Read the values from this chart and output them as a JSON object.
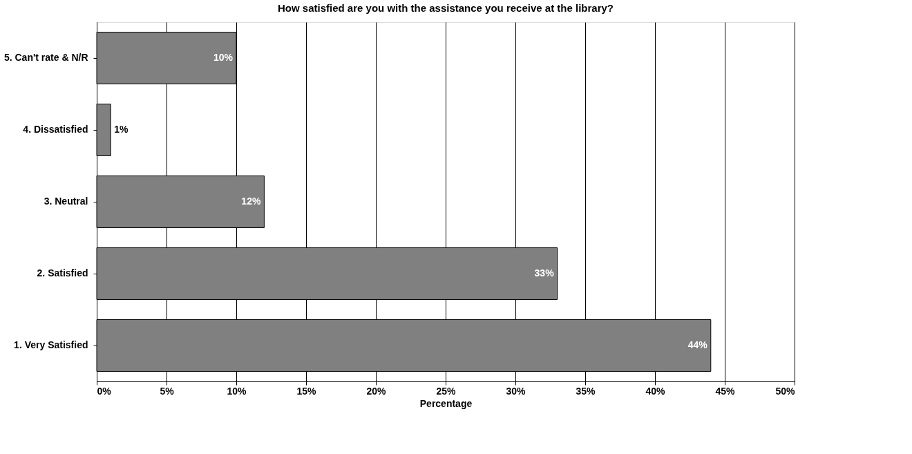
{
  "chart_data": {
    "type": "bar",
    "orientation": "horizontal",
    "title": "How satisfied are you with the assistance you receive at the library?",
    "xlabel": "Percentage",
    "categories": [
      "5. Can't rate & N/R",
      "4. Dissatisfied",
      "3. Neutral",
      "2. Satisfied",
      "1. Very Satisfied"
    ],
    "values": [
      10,
      1,
      12,
      33,
      44
    ],
    "value_labels": [
      "10%",
      "1%",
      "12%",
      "33%",
      "44%"
    ],
    "color": "#808080",
    "xlim": [
      0,
      50
    ],
    "xticks": [
      {
        "value": 0,
        "label": "0%"
      },
      {
        "value": 5,
        "label": "5%"
      },
      {
        "value": 10,
        "label": "10%"
      },
      {
        "value": 15,
        "label": "15%"
      },
      {
        "value": 20,
        "label": "20%"
      },
      {
        "value": 25,
        "label": "25%"
      },
      {
        "value": 30,
        "label": "30%"
      },
      {
        "value": 35,
        "label": "35%"
      },
      {
        "value": 40,
        "label": "40%"
      },
      {
        "value": 45,
        "label": "45%"
      },
      {
        "value": 50,
        "label": "50%"
      }
    ],
    "grid": "x"
  }
}
